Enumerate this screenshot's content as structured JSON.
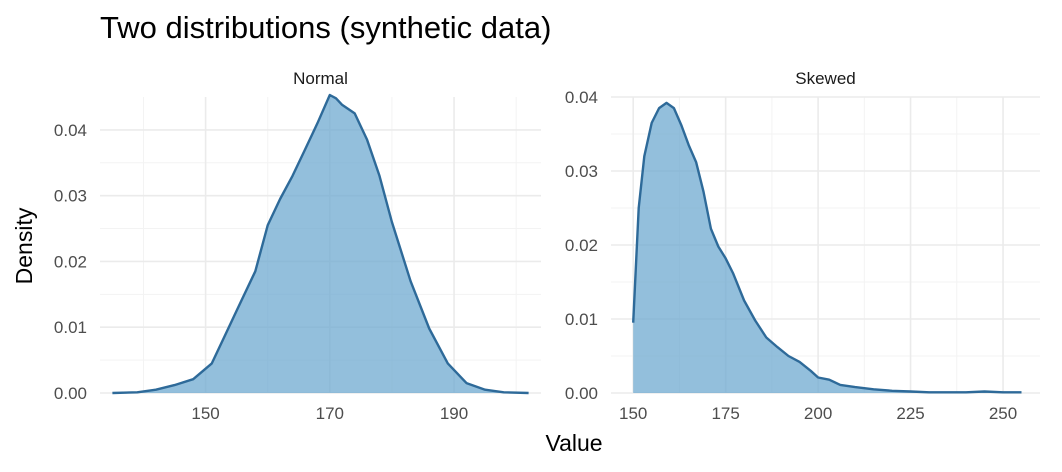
{
  "title": "Two distributions (synthetic data)",
  "xlabel": "Value",
  "ylabel": "Density",
  "colors": {
    "fill": "#6aa6cf",
    "line": "#2e6a99"
  },
  "chart_data": [
    {
      "type": "area",
      "facet": "Normal",
      "xlim": [
        133,
        204
      ],
      "ylim": [
        0,
        0.045
      ],
      "xticks": [
        150,
        170,
        190
      ],
      "yticks": [
        0,
        0.01,
        0.02,
        0.03,
        0.04
      ],
      "ytick_labels": [
        "0.00",
        "0.01",
        "0.02",
        "0.03",
        "0.04"
      ],
      "grid": true,
      "x": [
        135,
        139,
        142,
        145,
        148,
        151,
        153,
        155,
        158,
        160,
        162,
        164,
        166,
        168,
        170,
        171,
        172,
        174,
        176,
        178,
        180,
        183,
        186,
        189,
        192,
        195,
        198,
        202
      ],
      "y": [
        0.0,
        0.0001,
        0.0005,
        0.0012,
        0.0021,
        0.0045,
        0.0085,
        0.0125,
        0.0185,
        0.0255,
        0.0295,
        0.033,
        0.037,
        0.041,
        0.0453,
        0.0448,
        0.0438,
        0.0425,
        0.0385,
        0.033,
        0.026,
        0.017,
        0.0098,
        0.0045,
        0.0015,
        0.0005,
        0.0001,
        0.0
      ]
    },
    {
      "type": "area",
      "facet": "Skewed",
      "xlim": [
        144,
        260
      ],
      "ylim": [
        0,
        0.04
      ],
      "xticks": [
        150,
        175,
        200,
        225,
        250
      ],
      "yticks": [
        0,
        0.01,
        0.02,
        0.03,
        0.04
      ],
      "ytick_labels": [
        "0.00",
        "0.01",
        "0.02",
        "0.03",
        "0.04"
      ],
      "grid": true,
      "x": [
        150,
        151.5,
        153,
        155,
        157,
        159,
        161,
        163,
        165,
        167,
        169,
        171,
        173,
        175,
        177,
        180,
        183,
        186,
        189,
        192,
        195,
        198,
        200,
        203,
        206,
        210,
        215,
        220,
        225,
        230,
        235,
        240,
        245,
        250,
        255
      ],
      "y": [
        0.0095,
        0.025,
        0.032,
        0.0365,
        0.0385,
        0.0392,
        0.0385,
        0.0362,
        0.0335,
        0.0312,
        0.0272,
        0.0222,
        0.0198,
        0.0182,
        0.0162,
        0.0125,
        0.0098,
        0.0075,
        0.0062,
        0.005,
        0.0042,
        0.003,
        0.0021,
        0.0018,
        0.0011,
        0.0008,
        0.0005,
        0.0003,
        0.0002,
        0.0001,
        0.0001,
        0.0001,
        0.0002,
        0.0001,
        0.0001
      ]
    }
  ]
}
